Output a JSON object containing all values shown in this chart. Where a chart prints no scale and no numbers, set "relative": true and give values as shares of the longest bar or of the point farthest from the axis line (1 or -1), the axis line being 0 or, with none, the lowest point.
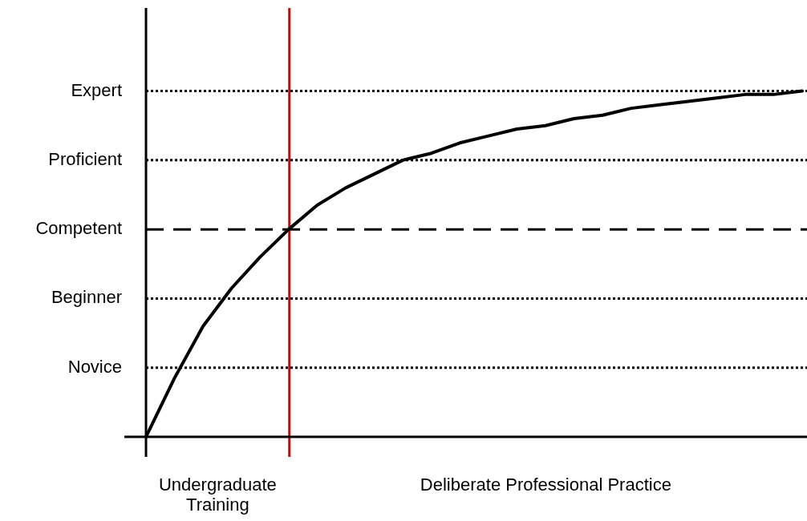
{
  "chart_data": {
    "type": "line",
    "categories": [
      null,
      null,
      null,
      null,
      null,
      null,
      null,
      null,
      null,
      null,
      null,
      null,
      null,
      null,
      null,
      null,
      null,
      null,
      null,
      null,
      null,
      null,
      null,
      null
    ],
    "relative": true,
    "series": [
      {
        "color": "#000000",
        "values": [
          0,
          0.17,
          0.32,
          0.43,
          0.52,
          0.6,
          0.67,
          0.72,
          0.76,
          0.8,
          0.82,
          0.85,
          0.87,
          0.89,
          0.9,
          0.92,
          0.93,
          0.95,
          0.96,
          0.97,
          0.98,
          0.99,
          0.99,
          1.0
        ]
      }
    ],
    "ref_lines": [
      {
        "axis": "y",
        "value": 0.2,
        "label": "Novice",
        "line_style": "dotted",
        "color": "#000000"
      },
      {
        "axis": "y",
        "value": 0.4,
        "label": "Beginner",
        "line_style": "dotted",
        "color": "#000000"
      },
      {
        "axis": "y",
        "value": 0.6,
        "label": "Competent",
        "line_style": "dashed",
        "color": "#000000"
      },
      {
        "axis": "y",
        "value": 0.8,
        "label": "Proficient",
        "line_style": "dotted",
        "color": "#000000"
      },
      {
        "axis": "y",
        "value": 1.0,
        "label": "Expert",
        "line_style": "dotted",
        "color": "#000000"
      }
    ],
    "annotations": [
      "Undergraduate Training",
      "Deliberate Professional Practice"
    ],
    "legend": false,
    "grid": false,
    "marker": "none",
    "line_style": "solid"
  }
}
